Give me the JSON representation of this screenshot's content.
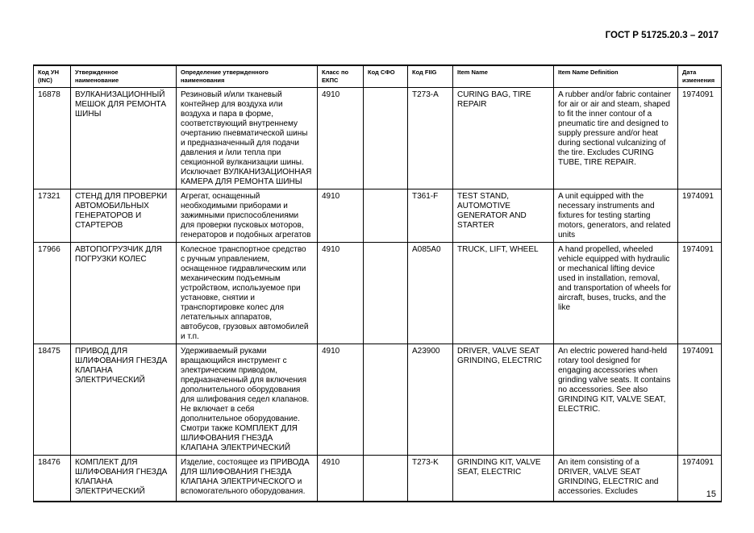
{
  "header": {
    "standard": "ГОСТ Р 51725.20.3 – 2017"
  },
  "table": {
    "columns": [
      "Код УН\n(INC)",
      "Утвержденное\nнаименование",
      "Определение утвержденного\nнаименования",
      "Класс по\nЕКПС",
      "Код СФО",
      "Код FIIG",
      "Item Name",
      "Item Name Definition",
      "Дата\nизменения"
    ],
    "rows": [
      [
        "16878",
        "ВУЛКАНИЗАЦИОННЫЙ\nМЕШОК ДЛЯ РЕМОНТА\nШИНЫ",
        "Резиновый и/или тканевый\nконтейнер для воздуха или\nвоздуха и пара в форме,\nсоответствующий внутреннему\nочертанию пневматической шины\nи предназначенный для подачи\nдавления и /или тепла при\nсекционной вулканизации шины.\nИсключает ВУЛКАНИЗАЦИОННАЯ\nКАМЕРА ДЛЯ РЕМОНТА ШИНЫ",
        "4910",
        "",
        "T273-A",
        "CURING BAG, TIRE\nREPAIR",
        "A rubber and/or fabric container\nfor air or air and steam, shaped\nto fit the inner contour of a\npneumatic tire and designed to\nsupply pressure and/or heat\nduring sectional vulcanizing of\nthe tire. Excludes CURING\nTUBE, TIRE REPAIR.",
        "1974091"
      ],
      [
        "17321",
        "СТЕНД ДЛЯ ПРОВЕРКИ\nАВТОМОБИЛЬНЫХ\nГЕНЕРАТОРОВ И\nСТАРТЕРОВ",
        "Агрегат, оснащенный\nнеобходимыми приборами и\nзажимными приспособлениями\nдля проверки пусковых моторов,\nгенераторов и подобных агрегатов",
        "4910",
        "",
        "T361-F",
        "TEST STAND,\nAUTOMOTIVE\nGENERATOR AND\nSTARTER",
        "A unit equipped with the\nnecessary instruments and\nfixtures for testing starting\nmotors, generators, and related\nunits",
        "1974091"
      ],
      [
        "17966",
        "АВТОПОГРУЗЧИК ДЛЯ\nПОГРУЗКИ КОЛЕС",
        "Колесное транспортное средство\nс ручным управлением,\nоснащенное гидравлическим или\nмеханическим подъемным\nустройством, используемое при\nустановке, снятии и\nтранспортировке колес для\nлетательных аппаратов,\nавтобусов, грузовых автомобилей\nи т.п.",
        "4910",
        "",
        "A085A0",
        "TRUCK, LIFT, WHEEL",
        "A hand propelled, wheeled\nvehicle equipped with hydraulic\nor mechanical lifting device\nused in installation, removal,\nand transportation of wheels for\naircraft, buses, trucks, and the\nlike",
        "1974091"
      ],
      [
        "18475",
        "ПРИВОД ДЛЯ\nШЛИФОВАНИЯ ГНЕЗДА\nКЛАПАНА\nЭЛЕКТРИЧЕСКИЙ",
        "Удерживаемый руками\nвращающийся инструмент с\nэлектрическим приводом,\nпредназначенный для включения\nдополнительного оборудования\nдля шлифования седел клапанов.\nНе включает в себя\nдополнительное оборудование.\nСмотри также КОМПЛЕКТ ДЛЯ\nШЛИФОВАНИЯ ГНЕЗДА\nКЛАПАНА ЭЛЕКТРИЧЕСКИЙ",
        "4910",
        "",
        "A23900",
        "DRIVER, VALVE SEAT\nGRINDING, ELECTRIC",
        "An electric powered hand-held\nrotary tool designed for\nengaging accessories when\ngrinding valve seats. It contains\nno accessories. See also\nGRINDING KIT, VALVE SEAT,\nELECTRIC.",
        "1974091"
      ],
      [
        "18476",
        "КОМПЛЕКТ ДЛЯ\nШЛИФОВАНИЯ ГНЕЗДА\nКЛАПАНА\nЭЛЕКТРИЧЕСКИЙ",
        "Изделие, состоящее из ПРИВОДА\nДЛЯ ШЛИФОВАНИЯ ГНЕЗДА\nКЛАПАНА ЭЛЕКТРИЧЕСКОГО и\nвспомогательного оборудования.",
        "4910",
        "",
        "T273-K",
        "GRINDING KIT, VALVE\nSEAT, ELECTRIC",
        "An item consisting of a\nDRIVER, VALVE SEAT\nGRINDING, ELECTRIC and\naccessories. Excludes",
        "1974091"
      ]
    ]
  },
  "footer": {
    "page_number": "15"
  }
}
